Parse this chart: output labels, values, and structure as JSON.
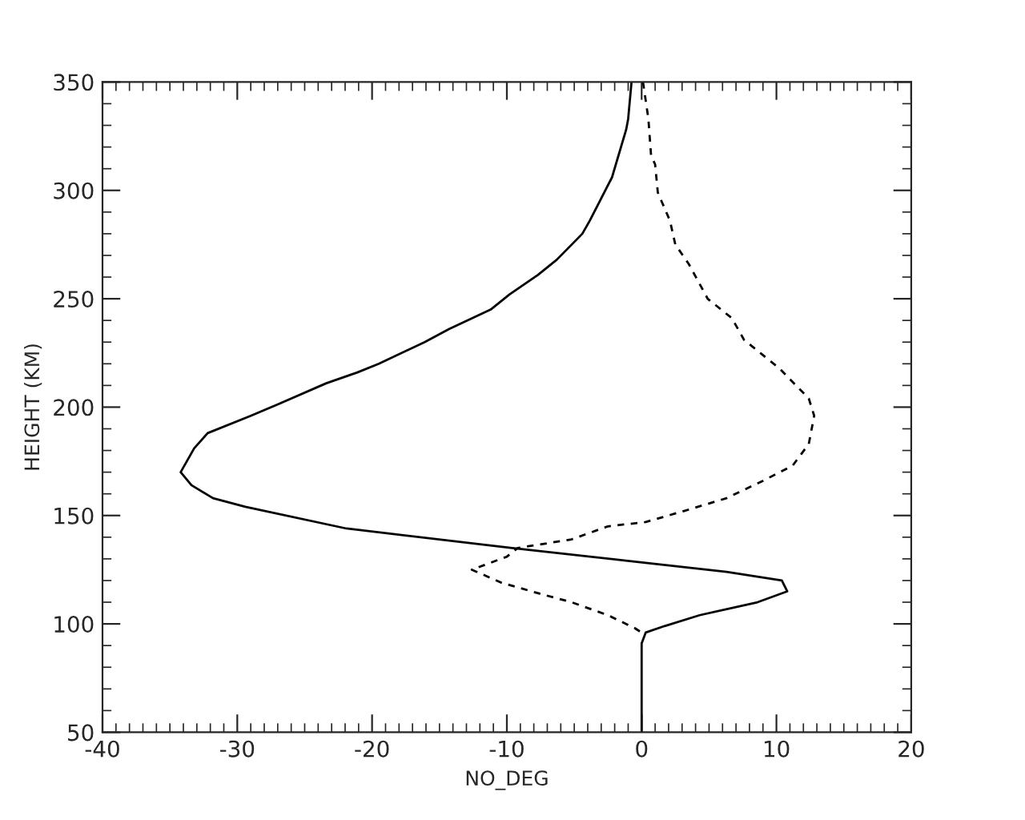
{
  "chart_data": {
    "type": "line",
    "xlabel": "NO_DEG",
    "ylabel": "HEIGHT (KM)",
    "xlim": [
      -40,
      20
    ],
    "xticks": [
      -40,
      -30,
      -20,
      -10,
      0,
      10,
      20
    ],
    "ylim": [
      50,
      350
    ],
    "yticks": [
      50,
      100,
      150,
      200,
      250,
      300,
      350
    ],
    "series": [
      {
        "color": "#000000",
        "line_style": "solid",
        "x": [
          -0.75,
          -1.0,
          -1.15,
          -2.2,
          -3.85,
          -4.4,
          -6.3,
          -7.7,
          -9.8,
          -11.2,
          -14.3,
          -16.1,
          -19.5,
          -21.1,
          -23.4,
          -27.1,
          -29.0,
          -32.2,
          -33.2,
          -34.2,
          -33.4,
          -31.8,
          -29.4,
          -21.9,
          -9.6,
          -0.9,
          6.3,
          10.4,
          10.8,
          8.6,
          4.3,
          1.7,
          0.3,
          0,
          0
        ],
        "values": [
          350,
          333,
          328,
          306,
          286,
          280,
          268,
          261,
          252,
          245,
          236,
          230,
          220,
          216,
          211,
          201,
          196,
          188,
          181,
          170,
          164,
          158,
          154,
          144,
          135,
          129,
          124,
          120,
          115,
          110,
          104,
          99,
          96,
          91,
          50
        ]
      },
      {
        "color": "#000000",
        "line_style": "dashed",
        "x": [
          0.1,
          0.5,
          0.7,
          1.0,
          1.2,
          2.1,
          2.5,
          3.5,
          4.9,
          6.7,
          7.6,
          10.2,
          12.4,
          12.8,
          12.4,
          11.2,
          9.0,
          6.3,
          3.1,
          0.3,
          -2.5,
          -5.2,
          -9.2,
          -10.0,
          -12.6,
          -10.4,
          -7.6,
          -5.2,
          -2.5,
          -0.5,
          0
        ],
        "values": [
          350,
          333,
          316,
          312,
          299,
          286,
          275,
          266,
          250,
          241,
          231,
          218,
          204,
          196,
          183,
          173,
          166,
          158,
          152,
          147,
          145,
          139,
          135,
          131,
          125,
          119,
          114,
          110,
          104,
          98,
          96
        ]
      }
    ]
  }
}
